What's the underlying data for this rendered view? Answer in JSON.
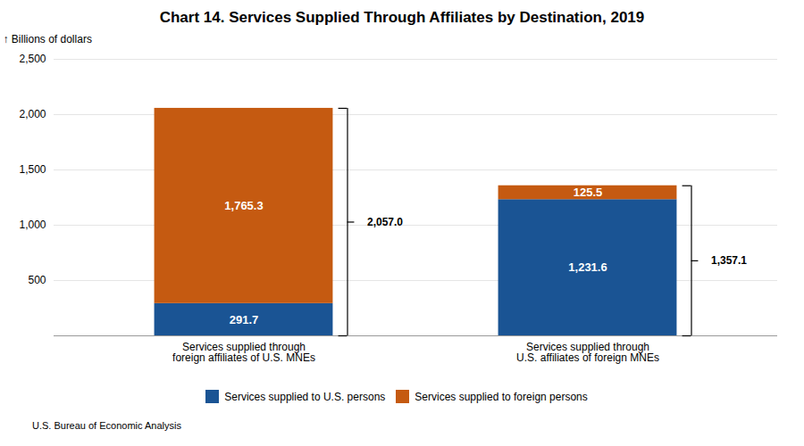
{
  "chart_data": {
    "type": "bar",
    "stacked": true,
    "title": "Chart 14. Services Supplied Through Affiliates by Destination, 2019",
    "ylabel": "Billions of dollars",
    "categories": [
      "Services supplied through\nforeign affiliates of U.S. MNEs",
      "Services supplied through\nU.S. affiliates of foreign MNEs"
    ],
    "series": [
      {
        "name": "Services supplied to U.S. persons",
        "color": "#1A5494",
        "values": [
          291.7,
          1231.6
        ],
        "value_labels": [
          "291.7",
          "1,231.6"
        ]
      },
      {
        "name": "Services supplied to foreign persons",
        "color": "#C55A11",
        "values": [
          1765.3,
          125.5
        ],
        "value_labels": [
          "1,765.3",
          "125.5"
        ]
      }
    ],
    "totals": [
      2057.0,
      1357.1
    ],
    "total_labels": [
      "2,057.0",
      "1,357.1"
    ],
    "ylim": [
      0,
      2500
    ],
    "yticks": [
      500,
      {
        "value": 1000,
        "label": "1,000"
      },
      {
        "value": 1500,
        "label": "1,500"
      },
      {
        "value": 2000,
        "label": "2,000"
      },
      {
        "value": 2500,
        "label": "2,500"
      }
    ],
    "grid": true,
    "data_labels": true,
    "legend": "bottom",
    "footnote": "U.S. Bureau of Economic Analysis"
  }
}
